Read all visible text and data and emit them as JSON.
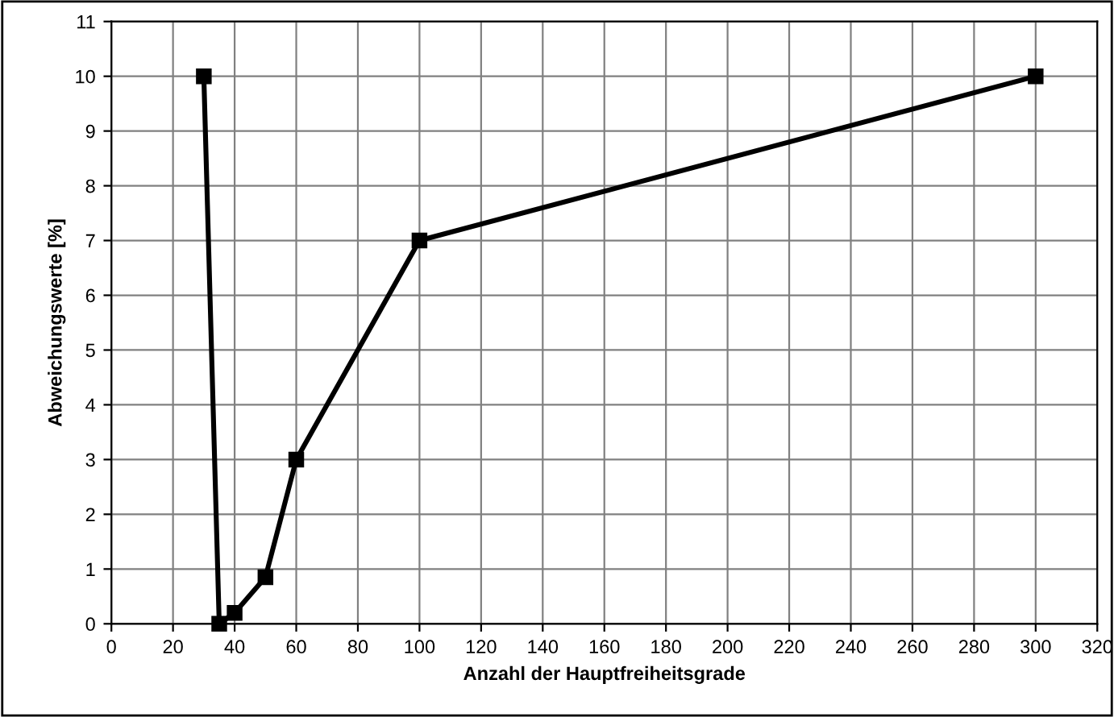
{
  "chart_data": {
    "type": "line",
    "xlabel": "Anzahl der Hauptfreiheitsgrade",
    "ylabel": "Abweichungswerte [%]",
    "x": [
      30,
      35,
      40,
      50,
      60,
      100,
      300
    ],
    "series": [
      {
        "color": "#000000",
        "values": [
          10,
          0,
          0.2,
          0.85,
          3,
          7,
          10
        ]
      }
    ],
    "xlim": [
      0,
      320
    ],
    "xticks": [
      0,
      20,
      40,
      60,
      80,
      100,
      120,
      140,
      160,
      180,
      200,
      220,
      240,
      260,
      280,
      300,
      320
    ],
    "ylim": [
      0,
      11
    ],
    "yticks": [
      0,
      1,
      2,
      3,
      4,
      5,
      6,
      7,
      8,
      9,
      10,
      11
    ],
    "grid": true,
    "marker": "square",
    "line_style": "solid",
    "legend": false
  }
}
